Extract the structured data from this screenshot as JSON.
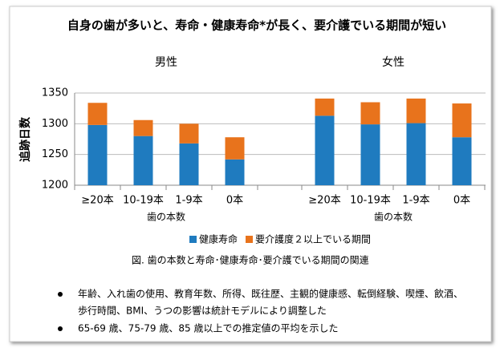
{
  "chart_data": {
    "type": "bar",
    "stacked": true,
    "title": "自身の歯が多いと、寿命・健康寿命*が長く、要介護でいる期間が短い",
    "ylabel": "追跡日数",
    "ylim": [
      1200,
      1350
    ],
    "yticks": [
      1200,
      1250,
      1300,
      1350
    ],
    "grid": true,
    "series": [
      {
        "name": "健康寿命",
        "color": "#1f7bbf"
      },
      {
        "name": "要介護度２以上でいる期間",
        "color": "#e8731c"
      }
    ],
    "groups": [
      {
        "title": "男性",
        "xlabel": "歯の本数",
        "categories": [
          "≥20本",
          "10-19本",
          "1-9本",
          "0本"
        ],
        "values": [
          [
            1298,
            1280,
            1268,
            1242
          ],
          [
            36,
            26,
            32,
            36
          ]
        ]
      },
      {
        "title": "女性",
        "xlabel": "歯の本数",
        "categories": [
          "≥20本",
          "10-19本",
          "1-9本",
          "0本"
        ],
        "values": [
          [
            1313,
            1299,
            1301,
            1278
          ],
          [
            28,
            36,
            40,
            55
          ]
        ]
      }
    ],
    "caption": "図. 歯の本数と寿命･健康寿命･要介護でいる期間の関連",
    "notes": [
      "年齢、入れ歯の使用、教育年数、所得、既往歴、主観的健康感、転倒経験、喫煙、飲酒、",
      "歩行時間、BMI、うつの影響は統計モデルにより調整した",
      "65-69 歳、75-79 歳、85 歳以上での推定値の平均を示した"
    ]
  }
}
